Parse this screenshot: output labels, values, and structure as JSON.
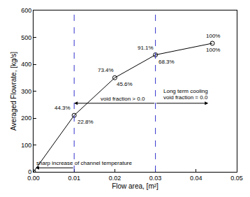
{
  "chart_data": {
    "type": "line",
    "x_label": "Flow area, [m²]",
    "y_label": "Averaged Flowrate, [kg/s]",
    "x": [
      0.0,
      0.01,
      0.02,
      0.03,
      0.044
    ],
    "values": [
      0,
      210,
      350,
      435,
      478
    ],
    "color": "#000000",
    "marker": "circle-open",
    "xlim": [
      0,
      0.05
    ],
    "xticks": [
      {
        "value": 0,
        "label": "0.00"
      },
      {
        "value": 0.01,
        "label": "0.01"
      },
      {
        "value": 0.02,
        "label": "0.02"
      },
      {
        "value": 0.03,
        "label": "0.03"
      },
      {
        "value": 0.04,
        "label": "0.04"
      },
      {
        "value": 0.05,
        "label": "0.05"
      }
    ],
    "ylim": [
      0,
      600
    ],
    "yticks": [
      0,
      100,
      200,
      300,
      400,
      500,
      600
    ],
    "grid": false,
    "vlines": [
      0.01,
      0.03
    ],
    "annotations": [
      {
        "text": "44.3%",
        "x": 0.0072,
        "y": 237
      },
      {
        "text": "22.8%",
        "x": 0.0128,
        "y": 185
      },
      {
        "text": "73.4%",
        "x": 0.0178,
        "y": 377
      },
      {
        "text": "45.6%",
        "x": 0.0225,
        "y": 325
      },
      {
        "text": "91.1%",
        "x": 0.0275,
        "y": 460
      },
      {
        "text": "68.3%",
        "x": 0.0328,
        "y": 410
      },
      {
        "text": "100%",
        "x": 0.0442,
        "y": 505
      },
      {
        "text": "100%",
        "x": 0.0442,
        "y": 452
      },
      {
        "text": "void fraction > 0.0",
        "x": 0.022,
        "y": 272
      },
      {
        "text": "Long term cooling",
        "x": 0.0375,
        "y": 300
      },
      {
        "text": "void fraction = 0.0",
        "x": 0.0375,
        "y": 276
      },
      {
        "text": "sharp increase of channel temperature",
        "x": 0.0125,
        "y": 32
      }
    ],
    "arrows": [
      {
        "from": [
          0.03,
          255
        ],
        "to": [
          0.01,
          255
        ]
      },
      {
        "from": [
          0.03,
          255
        ],
        "to": [
          0.043,
          255
        ]
      },
      {
        "from": [
          0.01,
          15
        ],
        "to": [
          0.0005,
          15
        ]
      }
    ]
  }
}
